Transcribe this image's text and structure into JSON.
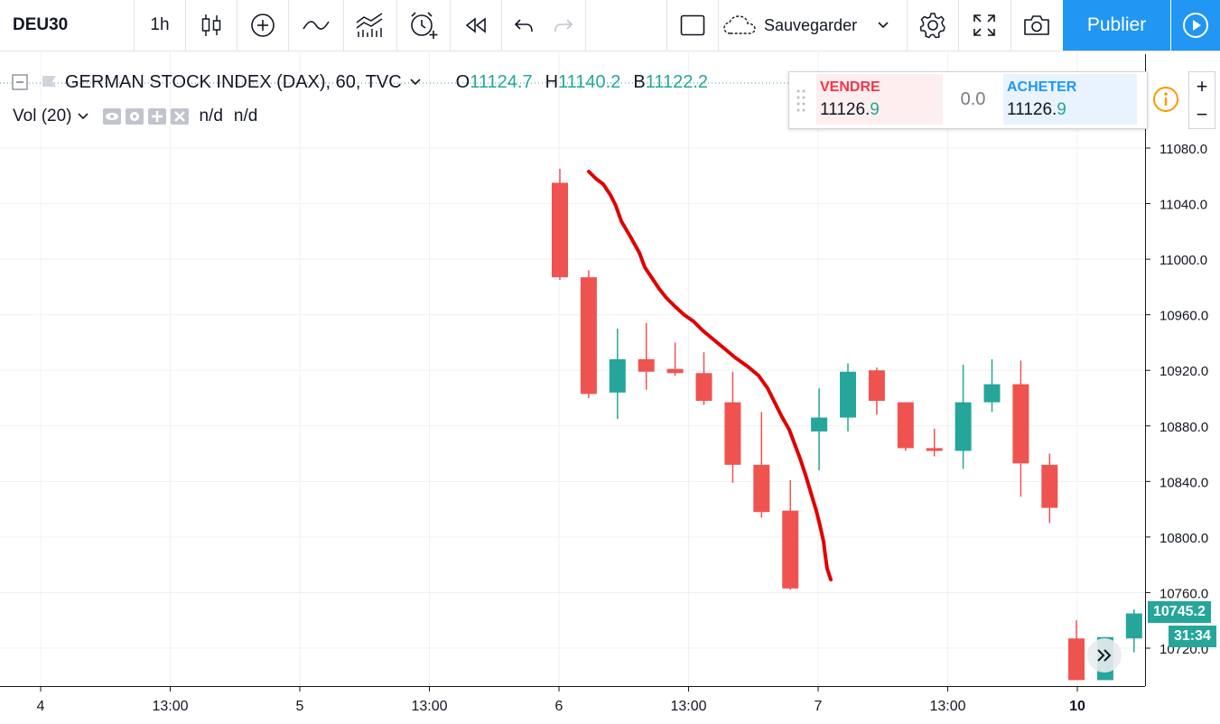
{
  "toolbar": {
    "symbol": "DEU30",
    "interval": "1h",
    "save_label": "Sauvegarder",
    "publish_label": "Publier"
  },
  "legend": {
    "title": "GERMAN STOCK INDEX (DAX), 60, TVC",
    "open_label": "O",
    "open_value": "11124.7",
    "high_label": "H",
    "high_value": "11140.2",
    "low_label": "B",
    "low_value": "11122.2",
    "vol_label": "Vol (20)",
    "vol_value1": "n/d",
    "vol_value2": "n/d"
  },
  "trade_panel": {
    "sell_label": "VENDRE",
    "sell_price_main": "11126.",
    "sell_price_last": "9",
    "spread": "0.0",
    "buy_label": "ACHETER",
    "buy_price_main": "11126.",
    "buy_price_last": "9"
  },
  "price_axis": {
    "current_price": "10745.2",
    "countdown": "31:34"
  },
  "colors": {
    "up": "#26a69a",
    "down": "#ef5350",
    "accent": "#2196f3",
    "trend": "#e00000"
  },
  "chart_data": {
    "type": "candlestick",
    "y_ticks": [
      "11080.0",
      "11040.0",
      "11000.0",
      "10960.0",
      "10920.0",
      "10880.0",
      "10840.0",
      "10800.0",
      "10760.0",
      "10720.0"
    ],
    "x_ticks": [
      "4",
      "13:00",
      "5",
      "13:00",
      "6",
      "13:00",
      "7",
      "13:00",
      "10"
    ],
    "candles": [
      {
        "o": 11055,
        "h": 11065,
        "l": 10985,
        "c": 10987
      },
      {
        "o": 10987,
        "h": 10992,
        "l": 10900,
        "c": 10903
      },
      {
        "o": 10904,
        "h": 10950,
        "l": 10885,
        "c": 10928
      },
      {
        "o": 10928,
        "h": 10954,
        "l": 10906,
        "c": 10919
      },
      {
        "o": 10921,
        "h": 10940,
        "l": 10916,
        "c": 10918
      },
      {
        "o": 10918,
        "h": 10933,
        "l": 10895,
        "c": 10898
      },
      {
        "o": 10897,
        "h": 10919,
        "l": 10839,
        "c": 10852
      },
      {
        "o": 10852,
        "h": 10890,
        "l": 10814,
        "c": 10818
      },
      {
        "o": 10819,
        "h": 10841,
        "l": 10762,
        "c": 10763
      },
      {
        "o": 10876,
        "h": 10907,
        "l": 10848,
        "c": 10886
      },
      {
        "o": 10886,
        "h": 10925,
        "l": 10876,
        "c": 10919
      },
      {
        "o": 10920,
        "h": 10922,
        "l": 10888,
        "c": 10898
      },
      {
        "o": 10897,
        "h": 10897,
        "l": 10862,
        "c": 10864
      },
      {
        "o": 10864,
        "h": 10878,
        "l": 10858,
        "c": 10862
      },
      {
        "o": 10862,
        "h": 10924,
        "l": 10849,
        "c": 10897
      },
      {
        "o": 10897,
        "h": 10928,
        "l": 10890,
        "c": 10910
      },
      {
        "o": 10910,
        "h": 10927,
        "l": 10829,
        "c": 10853
      },
      {
        "o": 10852,
        "h": 10860,
        "l": 10810,
        "c": 10821
      },
      {
        "o": 10727,
        "h": 10740,
        "l": 10697,
        "c": 10697
      },
      {
        "o": 10697,
        "h": 10728,
        "l": 10697,
        "c": 10728
      },
      {
        "o": 10727,
        "h": 10748,
        "l": 10717,
        "c": 10745
      }
    ]
  }
}
